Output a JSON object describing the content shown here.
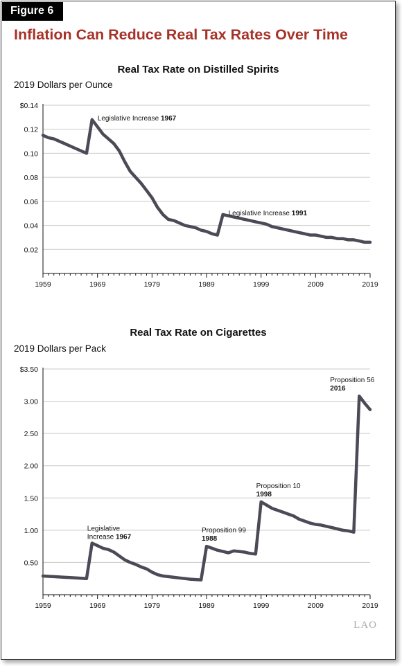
{
  "figure_label": "Figure 6",
  "headline": "Inflation Can Reduce Real Tax Rates Over Time",
  "brand": "LAO",
  "chart_data": [
    {
      "type": "line",
      "title": "Real Tax Rate on Distilled Spirits",
      "unit_label": "2019 Dollars per Ounce",
      "xlim": [
        1959,
        2019
      ],
      "ylim": [
        0,
        0.14
      ],
      "x_ticks": [
        1959,
        1969,
        1979,
        1989,
        1999,
        2009,
        2019
      ],
      "y_ticks": [
        {
          "value": 0.02,
          "label": "0.02"
        },
        {
          "value": 0.04,
          "label": "0.04"
        },
        {
          "value": 0.06,
          "label": "0.06"
        },
        {
          "value": 0.08,
          "label": "0.08"
        },
        {
          "value": 0.1,
          "label": "0.10"
        },
        {
          "value": 0.12,
          "label": "0.12"
        },
        {
          "value": 0.14,
          "label": "$0.14"
        }
      ],
      "grid": true,
      "series": [
        {
          "color": "#4b4a56",
          "x": [
            1959,
            1960,
            1961,
            1962,
            1963,
            1964,
            1965,
            1966,
            1967,
            1968,
            1969,
            1970,
            1971,
            1972,
            1973,
            1974,
            1975,
            1976,
            1977,
            1978,
            1979,
            1980,
            1981,
            1982,
            1983,
            1984,
            1985,
            1986,
            1987,
            1988,
            1989,
            1990,
            1991,
            1992,
            1993,
            1994,
            1995,
            1996,
            1997,
            1998,
            1999,
            2000,
            2001,
            2002,
            2003,
            2004,
            2005,
            2006,
            2007,
            2008,
            2009,
            2010,
            2011,
            2012,
            2013,
            2014,
            2015,
            2016,
            2017,
            2018,
            2019
          ],
          "y": [
            0.115,
            0.113,
            0.112,
            0.11,
            0.108,
            0.106,
            0.104,
            0.102,
            0.1,
            0.128,
            0.122,
            0.116,
            0.112,
            0.108,
            0.102,
            0.093,
            0.085,
            0.08,
            0.075,
            0.069,
            0.063,
            0.055,
            0.049,
            0.045,
            0.044,
            0.042,
            0.04,
            0.039,
            0.038,
            0.036,
            0.035,
            0.033,
            0.032,
            0.049,
            0.048,
            0.047,
            0.046,
            0.045,
            0.044,
            0.043,
            0.042,
            0.041,
            0.039,
            0.038,
            0.037,
            0.036,
            0.035,
            0.034,
            0.033,
            0.032,
            0.032,
            0.031,
            0.03,
            0.03,
            0.029,
            0.029,
            0.028,
            0.028,
            0.027,
            0.026,
            0.026
          ]
        }
      ],
      "annotations": [
        {
          "x": 1968,
          "y": 0.128,
          "text": "Legislative Increase",
          "bold": "1967"
        },
        {
          "x": 1992,
          "y": 0.049,
          "text": "Legislative Increase",
          "bold": "1991"
        }
      ]
    },
    {
      "type": "line",
      "title": "Real Tax Rate on Cigarettes",
      "unit_label": "2019 Dollars per Pack",
      "xlim": [
        1959,
        2019
      ],
      "ylim": [
        0,
        3.5
      ],
      "x_ticks": [
        1959,
        1969,
        1979,
        1989,
        1999,
        2009,
        2019
      ],
      "y_ticks": [
        {
          "value": 0.5,
          "label": "0.50"
        },
        {
          "value": 1.0,
          "label": "1.00"
        },
        {
          "value": 1.5,
          "label": "1.50"
        },
        {
          "value": 2.0,
          "label": "2.00"
        },
        {
          "value": 2.5,
          "label": "2.50"
        },
        {
          "value": 3.0,
          "label": "3.00"
        },
        {
          "value": 3.5,
          "label": "$3.50"
        }
      ],
      "grid": true,
      "series": [
        {
          "color": "#4b4a56",
          "x": [
            1959,
            1960,
            1961,
            1962,
            1963,
            1964,
            1965,
            1966,
            1967,
            1968,
            1969,
            1970,
            1971,
            1972,
            1973,
            1974,
            1975,
            1976,
            1977,
            1978,
            1979,
            1980,
            1981,
            1982,
            1983,
            1984,
            1985,
            1986,
            1987,
            1988,
            1989,
            1990,
            1991,
            1992,
            1993,
            1994,
            1995,
            1996,
            1997,
            1998,
            1999,
            2000,
            2001,
            2002,
            2003,
            2004,
            2005,
            2006,
            2007,
            2008,
            2009,
            2010,
            2011,
            2012,
            2013,
            2014,
            2015,
            2016,
            2017,
            2018,
            2019
          ],
          "y": [
            0.29,
            0.285,
            0.28,
            0.275,
            0.27,
            0.265,
            0.26,
            0.255,
            0.25,
            0.8,
            0.76,
            0.72,
            0.7,
            0.66,
            0.6,
            0.54,
            0.5,
            0.47,
            0.43,
            0.4,
            0.35,
            0.31,
            0.29,
            0.28,
            0.27,
            0.26,
            0.25,
            0.24,
            0.235,
            0.23,
            0.75,
            0.72,
            0.69,
            0.67,
            0.65,
            0.68,
            0.67,
            0.66,
            0.64,
            0.63,
            1.44,
            1.39,
            1.34,
            1.31,
            1.28,
            1.25,
            1.22,
            1.17,
            1.14,
            1.11,
            1.09,
            1.08,
            1.06,
            1.04,
            1.02,
            1.0,
            0.99,
            0.97,
            3.08,
            2.97,
            2.87
          ]
        }
      ],
      "annotations": [
        {
          "x": 1968,
          "y": 0.8,
          "text": "Legislative",
          "text2": "Increase",
          "bold": "1967"
        },
        {
          "x": 1989,
          "y": 0.75,
          "text": "Proposition 99",
          "bold": "1988"
        },
        {
          "x": 1999,
          "y": 1.44,
          "text": "Proposition 10",
          "bold": "1998"
        },
        {
          "x": 2017,
          "y": 3.08,
          "text": "Proposition 56",
          "bold": "2016"
        }
      ]
    }
  ]
}
